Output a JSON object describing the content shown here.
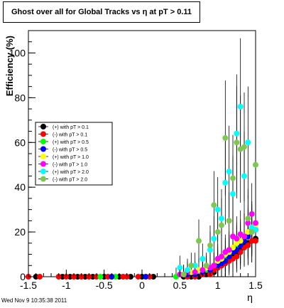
{
  "chart_data": {
    "type": "scatter",
    "title": "Ghost over all for Global Tracks vs η at pT > 0.11",
    "xlabel": "η",
    "ylabel": "Efficiency (%)",
    "xlim": [
      -1.5,
      1.5
    ],
    "ylim": [
      0,
      110
    ],
    "xticks": [
      "-1.5",
      "-1",
      "-0.5",
      "0",
      "0.5",
      "1",
      "1.5"
    ],
    "xtick_values": [
      -1.5,
      -1,
      -0.5,
      0,
      0.5,
      1,
      1.5
    ],
    "yticks": [
      "0",
      "20",
      "40",
      "60",
      "80",
      "100"
    ],
    "ytick_values": [
      0,
      20,
      40,
      60,
      80,
      100
    ],
    "grid": false,
    "legend_position": "left-middle",
    "series": [
      {
        "name": "(+) with pT > 0.1",
        "color": "#000000",
        "points": [
          [
            -1.4,
            0
          ],
          [
            -1.05,
            0
          ],
          [
            -0.95,
            0
          ],
          [
            -0.85,
            0
          ],
          [
            -0.75,
            0
          ],
          [
            -0.65,
            0
          ],
          [
            -0.5,
            0
          ],
          [
            -0.4,
            0
          ],
          [
            -0.3,
            0
          ],
          [
            -0.15,
            0
          ],
          [
            0,
            0
          ],
          [
            0.15,
            0
          ],
          [
            0.55,
            0
          ],
          [
            0.65,
            0
          ],
          [
            0.75,
            0
          ],
          [
            0.85,
            1
          ],
          [
            0.95,
            2
          ],
          [
            1.0,
            4
          ],
          [
            1.05,
            5
          ],
          [
            1.1,
            6
          ],
          [
            1.15,
            8
          ],
          [
            1.2,
            9
          ],
          [
            1.25,
            10
          ],
          [
            1.3,
            12
          ],
          [
            1.35,
            14
          ],
          [
            1.4,
            15
          ],
          [
            1.45,
            16
          ],
          [
            1.5,
            17
          ]
        ]
      },
      {
        "name": "(-) with pT > 0.1",
        "color": "#ff0000",
        "points": [
          [
            -1.5,
            0
          ],
          [
            -1.35,
            0
          ],
          [
            -1.1,
            0
          ],
          [
            -1.0,
            0
          ],
          [
            -0.9,
            0
          ],
          [
            -0.8,
            0
          ],
          [
            -0.7,
            0
          ],
          [
            -0.6,
            0
          ],
          [
            -0.45,
            0
          ],
          [
            -0.25,
            0
          ],
          [
            -0.2,
            0
          ],
          [
            -0.05,
            0
          ],
          [
            0.1,
            0
          ],
          [
            0.6,
            0
          ],
          [
            0.7,
            0
          ],
          [
            0.8,
            1
          ],
          [
            0.9,
            1
          ],
          [
            0.95,
            3
          ],
          [
            1.0,
            4
          ],
          [
            1.05,
            5
          ],
          [
            1.1,
            6
          ],
          [
            1.15,
            7
          ],
          [
            1.2,
            8
          ],
          [
            1.25,
            9
          ],
          [
            1.3,
            11
          ],
          [
            1.35,
            13
          ],
          [
            1.4,
            14
          ],
          [
            1.45,
            16
          ],
          [
            1.5,
            16
          ]
        ]
      },
      {
        "name": "(+) with pT > 0.5",
        "color": "#00ff00",
        "points": [
          [
            -0.55,
            0
          ],
          [
            -0.35,
            0
          ],
          [
            0.45,
            0
          ],
          [
            0.6,
            1
          ],
          [
            0.7,
            2
          ],
          [
            0.8,
            3
          ],
          [
            0.85,
            3
          ],
          [
            0.9,
            4
          ],
          [
            1.0,
            6
          ],
          [
            1.05,
            7
          ],
          [
            1.1,
            9
          ],
          [
            1.15,
            10
          ],
          [
            1.2,
            12
          ],
          [
            1.25,
            14
          ],
          [
            1.3,
            15
          ],
          [
            1.35,
            17
          ],
          [
            1.4,
            19
          ],
          [
            1.45,
            20
          ],
          [
            1.5,
            21
          ]
        ]
      },
      {
        "name": "(-) with pT > 0.5",
        "color": "#0000ff",
        "points": [
          [
            -0.4,
            0
          ],
          [
            0.05,
            0
          ],
          [
            0.6,
            1
          ],
          [
            0.7,
            1
          ],
          [
            0.8,
            2
          ],
          [
            0.9,
            3
          ],
          [
            1.0,
            5
          ],
          [
            1.05,
            6
          ],
          [
            1.1,
            7
          ],
          [
            1.15,
            9
          ],
          [
            1.2,
            11
          ],
          [
            1.25,
            12
          ],
          [
            1.3,
            14
          ],
          [
            1.35,
            16
          ],
          [
            1.4,
            18
          ],
          [
            1.45,
            21
          ],
          [
            1.5,
            21
          ]
        ]
      },
      {
        "name": "(+) with pT > 1.0",
        "color": "#ffff00",
        "points": [
          [
            0.55,
            1
          ],
          [
            0.65,
            2
          ],
          [
            0.75,
            3
          ],
          [
            0.85,
            4
          ],
          [
            0.95,
            5
          ],
          [
            1.0,
            7
          ],
          [
            1.05,
            8
          ],
          [
            1.1,
            10
          ],
          [
            1.15,
            11
          ],
          [
            1.2,
            13
          ],
          [
            1.25,
            15
          ],
          [
            1.3,
            16
          ],
          [
            1.35,
            18
          ],
          [
            1.4,
            20
          ],
          [
            1.45,
            22
          ],
          [
            1.5,
            23
          ]
        ]
      },
      {
        "name": "(-) with pT > 1.0",
        "color": "#ff00ff",
        "points": [
          [
            0.5,
            1
          ],
          [
            0.6,
            2
          ],
          [
            0.7,
            2
          ],
          [
            0.8,
            3
          ],
          [
            0.9,
            4
          ],
          [
            0.95,
            5
          ],
          [
            1.0,
            8
          ],
          [
            1.05,
            9
          ],
          [
            1.1,
            11
          ],
          [
            1.15,
            12
          ],
          [
            1.2,
            18
          ],
          [
            1.25,
            17
          ],
          [
            1.3,
            19
          ],
          [
            1.35,
            18
          ],
          [
            1.4,
            24
          ],
          [
            1.45,
            28
          ],
          [
            1.5,
            24
          ]
        ]
      },
      {
        "name": "(+) with pT > 2.0",
        "color": "#00ffff",
        "points": [
          [
            0.5,
            4
          ],
          [
            0.6,
            3
          ],
          [
            0.7,
            5
          ],
          [
            0.8,
            8
          ],
          [
            0.9,
            12
          ],
          [
            0.95,
            17
          ],
          [
            1.0,
            30
          ],
          [
            1.05,
            26
          ],
          [
            1.1,
            42
          ],
          [
            1.15,
            47
          ],
          [
            1.2,
            37
          ],
          [
            1.25,
            64
          ],
          [
            1.3,
            76
          ],
          [
            1.35,
            45
          ],
          [
            1.4,
            60
          ],
          [
            1.45,
            22
          ],
          [
            1.5,
            21
          ]
        ]
      },
      {
        "name": "(-) with pT > 2.0",
        "color": "#7ec850",
        "points": [
          [
            0.55,
            1
          ],
          [
            0.65,
            5
          ],
          [
            0.75,
            16
          ],
          [
            0.85,
            5
          ],
          [
            0.9,
            14
          ],
          [
            0.95,
            32
          ],
          [
            1.0,
            20
          ],
          [
            1.05,
            23
          ],
          [
            1.1,
            62
          ],
          [
            1.15,
            25
          ],
          [
            1.2,
            44
          ],
          [
            1.25,
            60
          ],
          [
            1.3,
            57
          ],
          [
            1.35,
            58
          ],
          [
            1.4,
            26
          ],
          [
            1.45,
            20
          ],
          [
            1.5,
            50
          ]
        ]
      }
    ]
  },
  "footer": {
    "timestamp": "Wed Nov  9 10:35:38 2011"
  }
}
